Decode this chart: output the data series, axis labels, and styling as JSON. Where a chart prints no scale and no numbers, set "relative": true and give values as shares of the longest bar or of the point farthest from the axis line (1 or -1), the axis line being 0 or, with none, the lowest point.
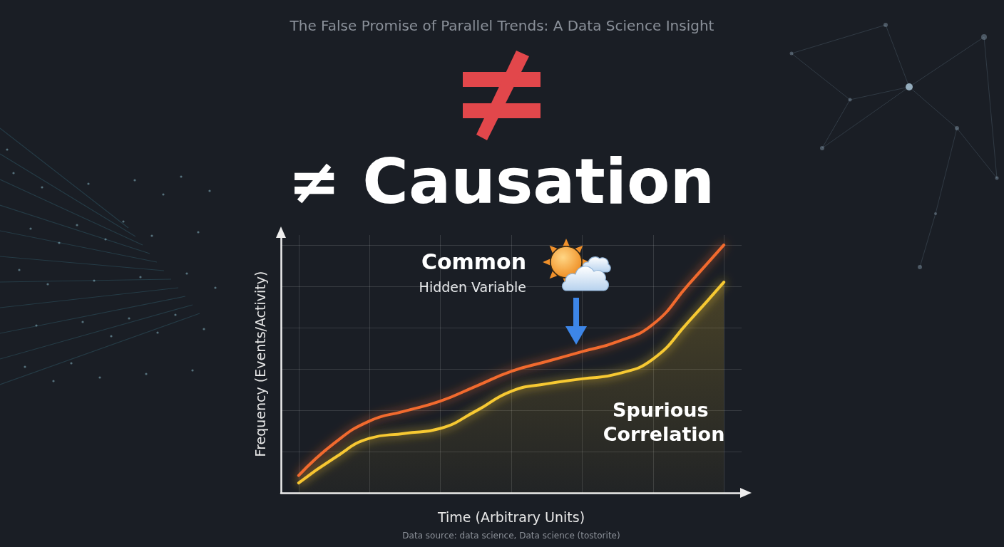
{
  "chart_data": {
    "type": "line",
    "title": "The False Promise of Parallel Trends: A Data Science Insight",
    "xlabel": "Time (Arbitrary Units)",
    "ylabel": "Frequency (Events/Activity)",
    "annotations": [
      "≠ Causation",
      "Common",
      "Hidden Variable",
      "Spurious Correlation",
      "Data source: data science, Data science (tostorite)"
    ],
    "categories": [
      null,
      null,
      null,
      null,
      null,
      null,
      null,
      null,
      null,
      null,
      null,
      null,
      null
    ],
    "relative": true,
    "series": [
      {
        "color": "#f26b2f",
        "values": [
          0.07,
          0.2,
          0.29,
          0.33,
          0.37,
          0.43,
          0.49,
          0.53,
          0.57,
          0.61,
          0.68,
          0.84,
          1
        ]
      },
      {
        "type": "area",
        "color": "#f7c932",
        "values": [
          0.04,
          0.14,
          0.22,
          0.24,
          0.26,
          0.33,
          0.41,
          0.44,
          0.46,
          0.48,
          0.54,
          0.69,
          0.85
        ]
      }
    ],
    "grid": true,
    "marker": "none",
    "line_style": "solid"
  }
}
